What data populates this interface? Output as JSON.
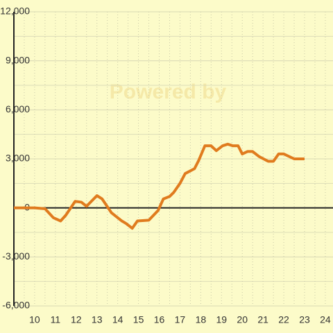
{
  "chart_data": {
    "type": "line",
    "watermark": "Powered by",
    "x": [
      9,
      10,
      10.5,
      10.9,
      11.25,
      11.5,
      11.95,
      12.25,
      12.5,
      13,
      13.25,
      13.7,
      14.2,
      14.4,
      14.7,
      14.95,
      15.5,
      15.95,
      16.2,
      16.5,
      16.7,
      17,
      17.25,
      17.7,
      17.9,
      18.2,
      18.5,
      18.75,
      19.05,
      19.3,
      19.55,
      19.8,
      20,
      20.25,
      20.5,
      20.8,
      21.25,
      21.5,
      21.75,
      22,
      22.5,
      23
    ],
    "series": [
      {
        "color": "#e07b1e",
        "values": [
          0,
          0,
          -50,
          -600,
          -800,
          -450,
          400,
          350,
          100,
          750,
          550,
          -300,
          -800,
          -950,
          -1250,
          -800,
          -750,
          -150,
          550,
          700,
          950,
          1500,
          2100,
          2400,
          2900,
          3800,
          3800,
          3500,
          3800,
          3900,
          3800,
          3800,
          3300,
          3450,
          3450,
          3150,
          2850,
          2850,
          3300,
          3300,
          3000,
          3000
        ]
      }
    ],
    "xlim": [
      9,
      24.37
    ],
    "xticks": [
      10,
      11,
      12,
      13,
      14,
      15,
      16,
      17,
      18,
      19,
      20,
      21,
      22,
      23,
      24
    ],
    "x_minor_ticks": [
      9.5,
      10.5,
      11.5,
      12.5,
      13.5,
      14.5,
      15.5,
      16.5,
      17.5,
      18.5,
      19.5,
      20.5,
      21.5,
      22.5,
      23.5
    ],
    "ylim": [
      -6000,
      12000
    ],
    "yticks": [
      {
        "value": -6000,
        "label": "-6,000"
      },
      {
        "value": -3000,
        "label": "-3,000"
      },
      0,
      {
        "value": 3000,
        "label": "3,000"
      },
      {
        "value": 6000,
        "label": "6,000"
      },
      {
        "value": 9000,
        "label": "9,000"
      },
      {
        "value": 12000,
        "label": "12,000"
      }
    ],
    "y_minor_ticks": [
      -4500,
      -1500,
      1500,
      4500,
      7500,
      10500
    ],
    "grid": true
  }
}
